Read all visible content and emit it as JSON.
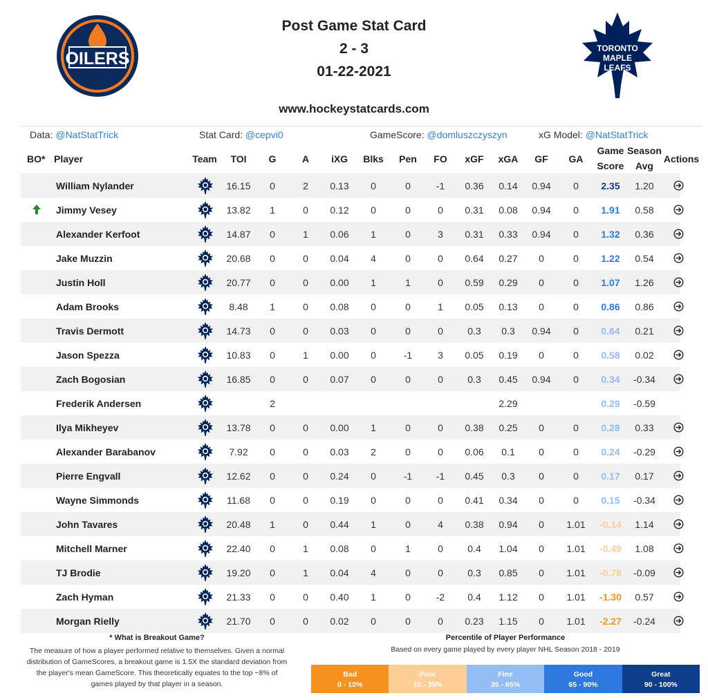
{
  "header": {
    "title": "Post Game Stat Card",
    "score": "2 - 3",
    "date": "01-22-2021",
    "website": "www.hockeystatcards.com",
    "home_logo_text": "OILERS",
    "away_logo_text": [
      "TORONTO",
      "MAPLE",
      "LEAFS"
    ]
  },
  "credits": [
    {
      "label": "Data: ",
      "handle": "@NatStatTrick"
    },
    {
      "label": "Stat Card: ",
      "handle": "@cepvi0"
    },
    {
      "label": "GameScore: ",
      "handle": "@domluszczyszyn"
    },
    {
      "label": "xG Model: ",
      "handle": "@NatStatTrick"
    }
  ],
  "columns": {
    "bo": "BO*",
    "player": "Player",
    "team": "Team",
    "toi": "TOI",
    "g": "G",
    "a": "A",
    "ixg": "iXG",
    "blks": "Blks",
    "pen": "Pen",
    "fo": "FO",
    "xgf": "xGF",
    "xga": "xGA",
    "gf": "GF",
    "ga": "GA",
    "game": "Game",
    "score": "Score",
    "season": "Season",
    "avg": "Avg",
    "actions": "Actions"
  },
  "colors": {
    "great": "#0e3d8c",
    "good": "#2e79e0",
    "fine": "#92bdf5",
    "poor": "#fdcf97",
    "bad": "#f6921e",
    "breakout_arrow": "#2a8a2a",
    "leafs_blue": "#00205b"
  },
  "players": [
    {
      "name": "William Nylander",
      "breakout": false,
      "toi": "16.15",
      "g": "0",
      "a": "2",
      "ixg": "0.13",
      "blks": "0",
      "pen": "0",
      "fo": "-1",
      "xgf": "0.36",
      "xga": "0.14",
      "gf": "0.94",
      "ga": "0",
      "gs": "2.35",
      "avg": "1.20",
      "tier": "great",
      "action": true
    },
    {
      "name": "Jimmy Vesey",
      "breakout": true,
      "toi": "13.82",
      "g": "1",
      "a": "0",
      "ixg": "0.12",
      "blks": "0",
      "pen": "0",
      "fo": "0",
      "xgf": "0.31",
      "xga": "0.08",
      "gf": "0.94",
      "ga": "0",
      "gs": "1.91",
      "avg": "0.58",
      "tier": "good",
      "action": true
    },
    {
      "name": "Alexander Kerfoot",
      "breakout": false,
      "toi": "14.87",
      "g": "0",
      "a": "1",
      "ixg": "0.06",
      "blks": "1",
      "pen": "0",
      "fo": "3",
      "xgf": "0.31",
      "xga": "0.33",
      "gf": "0.94",
      "ga": "0",
      "gs": "1.32",
      "avg": "0.36",
      "tier": "good",
      "action": true
    },
    {
      "name": "Jake Muzzin",
      "breakout": false,
      "toi": "20.68",
      "g": "0",
      "a": "0",
      "ixg": "0.04",
      "blks": "4",
      "pen": "0",
      "fo": "0",
      "xgf": "0.64",
      "xga": "0.27",
      "gf": "0",
      "ga": "0",
      "gs": "1.22",
      "avg": "0.54",
      "tier": "good",
      "action": true
    },
    {
      "name": "Justin Holl",
      "breakout": false,
      "toi": "20.77",
      "g": "0",
      "a": "0",
      "ixg": "0.00",
      "blks": "1",
      "pen": "1",
      "fo": "0",
      "xgf": "0.59",
      "xga": "0.29",
      "gf": "0",
      "ga": "0",
      "gs": "1.07",
      "avg": "1.26",
      "tier": "good",
      "action": true
    },
    {
      "name": "Adam Brooks",
      "breakout": false,
      "toi": "8.48",
      "g": "1",
      "a": "0",
      "ixg": "0.08",
      "blks": "0",
      "pen": "0",
      "fo": "1",
      "xgf": "0.05",
      "xga": "0.13",
      "gf": "0",
      "ga": "0",
      "gs": "0.86",
      "avg": "0.86",
      "tier": "good",
      "action": true
    },
    {
      "name": "Travis Dermott",
      "breakout": false,
      "toi": "14.73",
      "g": "0",
      "a": "0",
      "ixg": "0.03",
      "blks": "0",
      "pen": "0",
      "fo": "0",
      "xgf": "0.3",
      "xga": "0.3",
      "gf": "0.94",
      "ga": "0",
      "gs": "0.64",
      "avg": "0.21",
      "tier": "fine",
      "action": true
    },
    {
      "name": "Jason Spezza",
      "breakout": false,
      "toi": "10.83",
      "g": "0",
      "a": "1",
      "ixg": "0.00",
      "blks": "0",
      "pen": "-1",
      "fo": "3",
      "xgf": "0.05",
      "xga": "0.19",
      "gf": "0",
      "ga": "0",
      "gs": "0.58",
      "avg": "0.02",
      "tier": "fine",
      "action": true
    },
    {
      "name": "Zach Bogosian",
      "breakout": false,
      "toi": "16.85",
      "g": "0",
      "a": "0",
      "ixg": "0.07",
      "blks": "0",
      "pen": "0",
      "fo": "0",
      "xgf": "0.3",
      "xga": "0.45",
      "gf": "0.94",
      "ga": "0",
      "gs": "0.34",
      "avg": "-0.34",
      "tier": "fine",
      "action": true
    },
    {
      "name": "Frederik Andersen",
      "breakout": false,
      "toi": "",
      "g": "2",
      "a": "",
      "ixg": "",
      "blks": "",
      "pen": "",
      "fo": "",
      "xgf": "",
      "xga": "2.29",
      "gf": "",
      "ga": "",
      "gs": "0.29",
      "avg": "-0.59",
      "tier": "fine",
      "action": false
    },
    {
      "name": "Ilya Mikheyev",
      "breakout": false,
      "toi": "13.78",
      "g": "0",
      "a": "0",
      "ixg": "0.00",
      "blks": "1",
      "pen": "0",
      "fo": "0",
      "xgf": "0.38",
      "xga": "0.25",
      "gf": "0",
      "ga": "0",
      "gs": "0.28",
      "avg": "0.33",
      "tier": "fine",
      "action": true
    },
    {
      "name": "Alexander Barabanov",
      "breakout": false,
      "toi": "7.92",
      "g": "0",
      "a": "0",
      "ixg": "0.03",
      "blks": "2",
      "pen": "0",
      "fo": "0",
      "xgf": "0.06",
      "xga": "0.1",
      "gf": "0",
      "ga": "0",
      "gs": "0.24",
      "avg": "-0.29",
      "tier": "fine",
      "action": true
    },
    {
      "name": "Pierre Engvall",
      "breakout": false,
      "toi": "12.62",
      "g": "0",
      "a": "0",
      "ixg": "0.24",
      "blks": "0",
      "pen": "-1",
      "fo": "-1",
      "xgf": "0.45",
      "xga": "0.3",
      "gf": "0",
      "ga": "0",
      "gs": "0.17",
      "avg": "0.17",
      "tier": "fine",
      "action": true
    },
    {
      "name": "Wayne Simmonds",
      "breakout": false,
      "toi": "11.68",
      "g": "0",
      "a": "0",
      "ixg": "0.19",
      "blks": "0",
      "pen": "0",
      "fo": "0",
      "xgf": "0.41",
      "xga": "0.34",
      "gf": "0",
      "ga": "0",
      "gs": "0.15",
      "avg": "-0.34",
      "tier": "fine",
      "action": true
    },
    {
      "name": "John Tavares",
      "breakout": false,
      "toi": "20.48",
      "g": "1",
      "a": "0",
      "ixg": "0.44",
      "blks": "1",
      "pen": "0",
      "fo": "4",
      "xgf": "0.38",
      "xga": "0.94",
      "gf": "0",
      "ga": "1.01",
      "gs": "-0.14",
      "avg": "1.14",
      "tier": "poor",
      "action": true
    },
    {
      "name": "Mitchell Marner",
      "breakout": false,
      "toi": "22.40",
      "g": "0",
      "a": "1",
      "ixg": "0.08",
      "blks": "0",
      "pen": "1",
      "fo": "0",
      "xgf": "0.4",
      "xga": "1.04",
      "gf": "0",
      "ga": "1.01",
      "gs": "-0.49",
      "avg": "1.08",
      "tier": "poor",
      "action": true
    },
    {
      "name": "TJ Brodie",
      "breakout": false,
      "toi": "19.20",
      "g": "0",
      "a": "1",
      "ixg": "0.04",
      "blks": "4",
      "pen": "0",
      "fo": "0",
      "xgf": "0.3",
      "xga": "0.85",
      "gf": "0",
      "ga": "1.01",
      "gs": "-0.78",
      "avg": "-0.09",
      "tier": "poor",
      "action": true
    },
    {
      "name": "Zach Hyman",
      "breakout": false,
      "toi": "21.33",
      "g": "0",
      "a": "0",
      "ixg": "0.40",
      "blks": "1",
      "pen": "0",
      "fo": "-2",
      "xgf": "0.4",
      "xga": "1.12",
      "gf": "0",
      "ga": "1.01",
      "gs": "-1.30",
      "avg": "0.57",
      "tier": "bad",
      "action": true
    },
    {
      "name": "Morgan Rielly",
      "breakout": false,
      "toi": "21.70",
      "g": "0",
      "a": "0",
      "ixg": "0.02",
      "blks": "0",
      "pen": "0",
      "fo": "0",
      "xgf": "0.23",
      "xga": "1.15",
      "gf": "0",
      "ga": "1.01",
      "gs": "-2.27",
      "avg": "-0.24",
      "tier": "bad",
      "action": true
    }
  ],
  "footnote": {
    "title": "* What is Breakout Game?",
    "lines": [
      "The measure of how a player performed relative to themselves. Given a normal",
      "distribution of GameScores, a breakout game is 1.5X the standard deviation from",
      "the player's mean GameScore. This theoretically equates to the top ~8% of",
      "games played by that player in a season."
    ]
  },
  "percentile": {
    "title": "Percentile of Player Performance",
    "subtitle": "Based on every game played by every player NHL Season 2018 - 2019",
    "legend": [
      {
        "label": "Bad",
        "range": "0 - 10%",
        "color": "#f6921e"
      },
      {
        "label": "Poor",
        "range": "10 - 35%",
        "color": "#fdcf97"
      },
      {
        "label": "Fine",
        "range": "35 - 65%",
        "color": "#92bdf5"
      },
      {
        "label": "Good",
        "range": "65 - 90%",
        "color": "#2e79e0"
      },
      {
        "label": "Great",
        "range": "90 - 100%",
        "color": "#0e3d8c"
      }
    ]
  }
}
